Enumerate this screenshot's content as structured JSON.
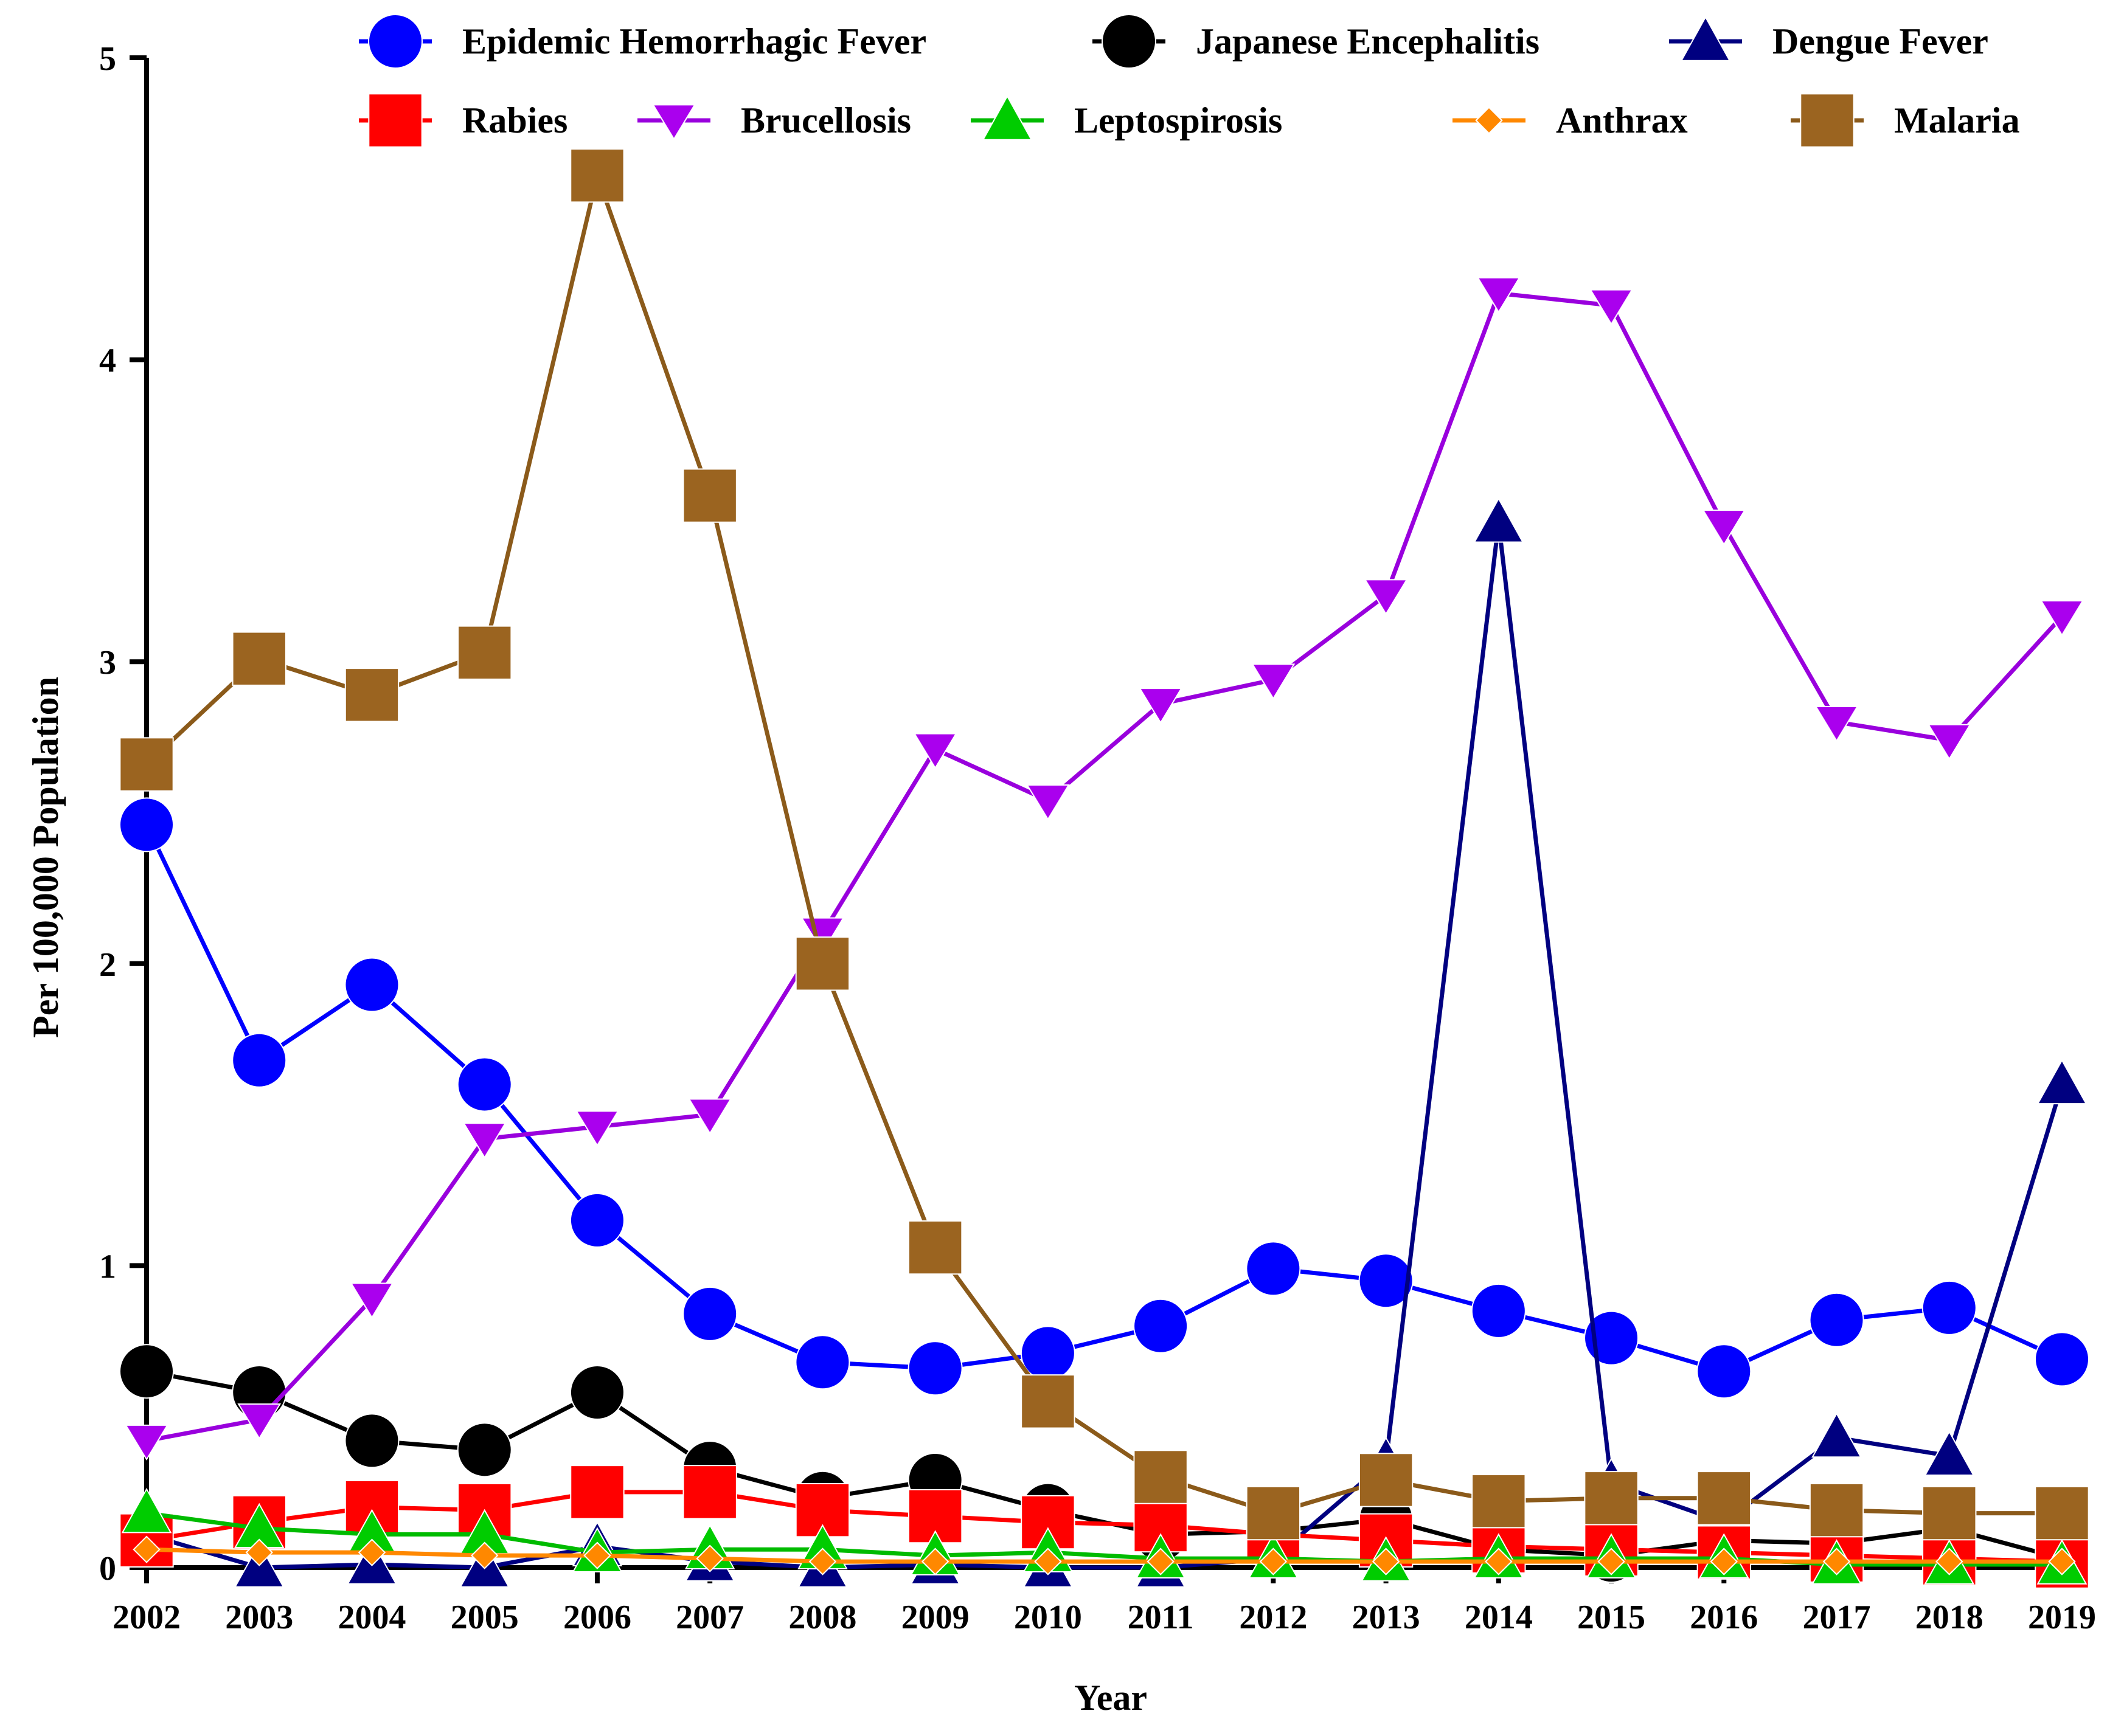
{
  "chart_data": {
    "type": "line",
    "title": "",
    "xlabel": "Year",
    "ylabel": "Per 100,000 Population",
    "ylim": [
      0,
      5
    ],
    "yticks": [
      "0",
      "1",
      "2",
      "3",
      "4",
      "5"
    ],
    "grid": false,
    "legend_position": "top",
    "categories": [
      "2002",
      "2003",
      "2004",
      "2005",
      "2006",
      "2007",
      "2008",
      "2009",
      "2010",
      "2011",
      "2012",
      "2013",
      "2014",
      "2015",
      "2016",
      "2017",
      "2018",
      "2019"
    ],
    "series": [
      {
        "name": "Epidemic Hemorrhagic Fever",
        "marker": "circle",
        "color": "#0000ff",
        "markerColor": "#0000ff",
        "values": [
          2.46,
          1.68,
          1.93,
          1.6,
          1.15,
          0.84,
          0.68,
          0.66,
          0.71,
          0.8,
          0.99,
          0.95,
          0.85,
          0.76,
          0.65,
          0.82,
          0.86,
          0.69
        ]
      },
      {
        "name": "Japanese Encephalitis",
        "marker": "circle",
        "color": "#000000",
        "markerColor": "#000000",
        "values": [
          0.65,
          0.58,
          0.42,
          0.39,
          0.58,
          0.33,
          0.23,
          0.29,
          0.19,
          0.11,
          0.12,
          0.16,
          0.06,
          0.04,
          0.09,
          0.08,
          0.13,
          0.03
        ]
      },
      {
        "name": "Dengue Fever",
        "marker": "triangle-up",
        "color": "#000080",
        "markerColor": "#000080",
        "values": [
          0.11,
          0.0,
          0.01,
          0.0,
          0.07,
          0.02,
          0.0,
          0.01,
          0.0,
          0.0,
          0.03,
          0.35,
          3.46,
          0.28,
          0.15,
          0.43,
          0.37,
          1.6
        ]
      },
      {
        "name": "Rabies",
        "marker": "square",
        "color": "#ff0000",
        "markerColor": "#ff0000",
        "values": [
          0.09,
          0.15,
          0.2,
          0.19,
          0.25,
          0.25,
          0.19,
          0.17,
          0.15,
          0.14,
          0.11,
          0.09,
          0.07,
          0.06,
          0.05,
          0.04,
          0.03,
          0.02
        ]
      },
      {
        "name": "Brucellosis",
        "marker": "triangle-down",
        "color": "#9900dd",
        "markerColor": "#aa00ee",
        "values": [
          0.42,
          0.49,
          0.89,
          1.42,
          1.46,
          1.5,
          2.1,
          2.71,
          2.54,
          2.86,
          2.94,
          3.22,
          4.22,
          4.18,
          3.45,
          2.8,
          2.74,
          3.15
        ]
      },
      {
        "name": "Leptospirosis",
        "marker": "triangle-up",
        "color": "#00bb00",
        "markerColor": "#00cc00",
        "values": [
          0.18,
          0.13,
          0.11,
          0.11,
          0.05,
          0.06,
          0.06,
          0.04,
          0.05,
          0.03,
          0.03,
          0.02,
          0.03,
          0.03,
          0.03,
          0.01,
          0.01,
          0.01
        ]
      },
      {
        "name": "Anthrax",
        "marker": "diamond",
        "color": "#ff8800",
        "markerColor": "#ff8800",
        "values": [
          0.06,
          0.05,
          0.05,
          0.04,
          0.04,
          0.03,
          0.02,
          0.02,
          0.02,
          0.02,
          0.02,
          0.02,
          0.02,
          0.02,
          0.02,
          0.02,
          0.02,
          0.02
        ]
      },
      {
        "name": "Malaria",
        "marker": "square",
        "color": "#8b5a1a",
        "markerColor": "#9b6420",
        "values": [
          2.66,
          3.01,
          2.89,
          3.03,
          4.61,
          3.55,
          2.0,
          1.06,
          0.55,
          0.3,
          0.18,
          0.29,
          0.22,
          0.23,
          0.23,
          0.19,
          0.18,
          0.18
        ]
      }
    ]
  }
}
